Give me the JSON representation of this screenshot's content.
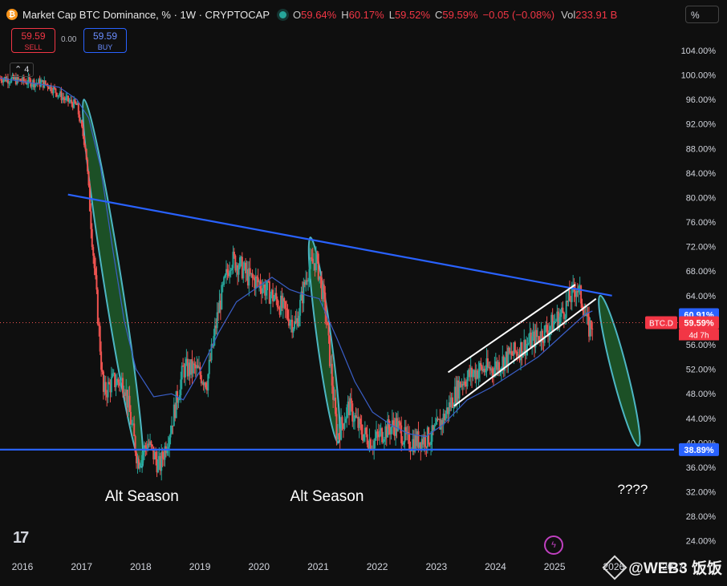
{
  "header": {
    "title": "Market Cap BTC Dominance, % · 1W · CRYPTOCAP",
    "open_label": "O",
    "open": "59.64%",
    "high_label": "H",
    "high": "60.17%",
    "low_label": "L",
    "low": "59.52%",
    "close_label": "C",
    "close": "59.59%",
    "change": "−0.05 (−0.08%)",
    "vol_label": "Vol",
    "vol": "233.91 B"
  },
  "trade": {
    "sell_price": "59.59",
    "sell_label": "SELL",
    "spread": "0.00",
    "buy_price": "59.59",
    "buy_label": "BUY"
  },
  "indicator_count": "4",
  "scale_mode": "%",
  "symbol_tag": "BTC.D",
  "price_tag": "59.59%",
  "countdown": "4d 7h",
  "resistance_tag": "60.91%",
  "support_tag": "38.89%",
  "annotations": {
    "alt_season_1": "Alt Season",
    "alt_season_2": "Alt Season",
    "future": "????"
  },
  "watermark": "@WEB3 饭饭",
  "colors": {
    "up": "#26a69a",
    "down": "#ef5350",
    "trend": "#2962ff",
    "ma": "#3a5fc8",
    "ellipse_fill": "#1e5c2a",
    "ellipse_stroke": "#4db6c4"
  },
  "chart_data": {
    "type": "candlestick",
    "title": "Market Cap BTC Dominance, % · 1W · CRYPTOCAP",
    "ylim": [
      22,
      107
    ],
    "xlim": [
      2015.7,
      2027.1
    ],
    "y_ticks": [
      "24.00%",
      "28.00%",
      "32.00%",
      "36.00%",
      "40.00%",
      "44.00%",
      "48.00%",
      "52.00%",
      "56.00%",
      "60.00%",
      "64.00%",
      "68.00%",
      "72.00%",
      "76.00%",
      "80.00%",
      "84.00%",
      "88.00%",
      "92.00%",
      "96.00%",
      "100.00%",
      "104.00%"
    ],
    "x_ticks": [
      "2016",
      "2017",
      "2018",
      "2019",
      "2020",
      "2021",
      "2022",
      "2023",
      "2024",
      "2025",
      "2026",
      "2027"
    ],
    "price_path": [
      [
        2015.7,
        99.5
      ],
      [
        2016.5,
        98.5
      ],
      [
        2016.8,
        96.0
      ],
      [
        2017.0,
        95.0
      ],
      [
        2017.15,
        88.0
      ],
      [
        2017.3,
        68.0
      ],
      [
        2017.45,
        48.0
      ],
      [
        2017.6,
        50.0
      ],
      [
        2017.8,
        50.0
      ],
      [
        2018.03,
        37.0
      ],
      [
        2018.2,
        40.0
      ],
      [
        2018.4,
        36.0
      ],
      [
        2018.6,
        43.0
      ],
      [
        2018.8,
        52.0
      ],
      [
        2019.0,
        52.0
      ],
      [
        2019.2,
        50.0
      ],
      [
        2019.4,
        62.0
      ],
      [
        2019.6,
        70.0
      ],
      [
        2019.75,
        69.0
      ],
      [
        2019.9,
        67.0
      ],
      [
        2020.1,
        66.0
      ],
      [
        2020.4,
        63.0
      ],
      [
        2020.7,
        59.0
      ],
      [
        2020.9,
        68.0
      ],
      [
        2021.05,
        70.0
      ],
      [
        2021.2,
        62.0
      ],
      [
        2021.4,
        41.0
      ],
      [
        2021.6,
        46.0
      ],
      [
        2021.8,
        42.0
      ],
      [
        2022.0,
        40.0
      ],
      [
        2022.2,
        42.0
      ],
      [
        2022.4,
        43.0
      ],
      [
        2022.6,
        40.0
      ],
      [
        2022.8,
        40.5
      ],
      [
        2023.0,
        41.0
      ],
      [
        2023.2,
        44.0
      ],
      [
        2023.5,
        50.0
      ],
      [
        2023.8,
        52.0
      ],
      [
        2024.0,
        52.0
      ],
      [
        2024.3,
        54.0
      ],
      [
        2024.6,
        56.0
      ],
      [
        2024.9,
        58.0
      ],
      [
        2025.2,
        61.0
      ],
      [
        2025.45,
        65.5
      ],
      [
        2025.55,
        63.0
      ],
      [
        2025.65,
        58.5
      ],
      [
        2025.72,
        59.59
      ]
    ],
    "moving_average": [
      [
        2015.7,
        99.5
      ],
      [
        2016.7,
        98.0
      ],
      [
        2017.0,
        96.0
      ],
      [
        2017.2,
        93.0
      ],
      [
        2017.4,
        85.0
      ],
      [
        2017.6,
        72.0
      ],
      [
        2017.8,
        60.0
      ],
      [
        2018.0,
        52.0
      ],
      [
        2018.3,
        47.5
      ],
      [
        2018.6,
        48.0
      ],
      [
        2018.8,
        47.0
      ],
      [
        2019.1,
        52.0
      ],
      [
        2019.4,
        58.0
      ],
      [
        2019.7,
        63.0
      ],
      [
        2020.0,
        65.0
      ],
      [
        2020.3,
        67.0
      ],
      [
        2020.6,
        65.0
      ],
      [
        2020.9,
        64.0
      ],
      [
        2021.1,
        63.5
      ],
      [
        2021.4,
        57.0
      ],
      [
        2021.7,
        50.0
      ],
      [
        2022.0,
        45.0
      ],
      [
        2022.3,
        43.0
      ],
      [
        2022.6,
        41.5
      ],
      [
        2022.9,
        41.0
      ],
      [
        2023.2,
        43.0
      ],
      [
        2023.6,
        47.0
      ],
      [
        2024.0,
        49.0
      ],
      [
        2024.4,
        51.5
      ],
      [
        2024.8,
        54.0
      ],
      [
        2025.2,
        57.5
      ],
      [
        2025.6,
        61.0
      ],
      [
        2025.72,
        61.5
      ]
    ],
    "trendlines": [
      {
        "name": "descending resistance",
        "from": [
          2016.85,
          80.5
        ],
        "to": [
          2026.05,
          64.0
        ],
        "color": "#2962ff"
      },
      {
        "name": "support",
        "from": [
          2015.7,
          38.89
        ],
        "to": [
          2027.1,
          38.89
        ],
        "color": "#2962ff"
      },
      {
        "name": "channel upper",
        "from": [
          2023.28,
          51.5
        ],
        "to": [
          2025.43,
          65.8
        ],
        "color": "#ffffff"
      },
      {
        "name": "channel lower",
        "from": [
          2023.38,
          46.0
        ],
        "to": [
          2025.78,
          63.5
        ],
        "color": "#ffffff"
      }
    ],
    "ellipses": [
      {
        "name": "alt season 2017",
        "from": [
          2017.12,
          96.0
        ],
        "to": [
          2018.1,
          36.0
        ],
        "half_width_years": 0.15
      },
      {
        "name": "alt season 2021",
        "from": [
          2020.95,
          73.5
        ],
        "to": [
          2021.42,
          40.0
        ],
        "half_width_years": 0.12
      },
      {
        "name": "projected",
        "from": [
          2025.85,
          64.0
        ],
        "to": [
          2026.5,
          39.5
        ],
        "half_width_years": 0.13
      }
    ]
  }
}
